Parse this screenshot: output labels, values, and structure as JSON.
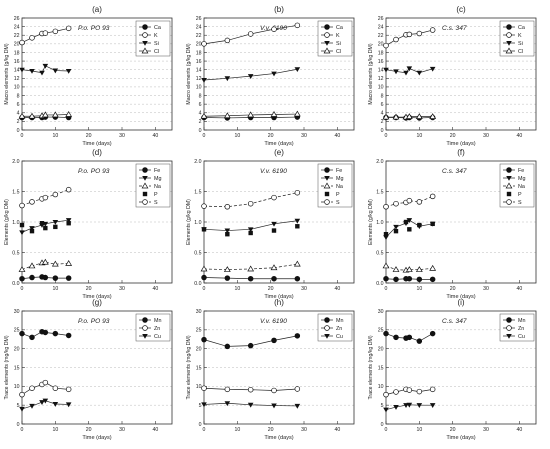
{
  "chart_data": [
    {
      "type": "line",
      "panel_label": "(a)",
      "annotation": "P.o. PO 93",
      "ylabel": "Macro elements (g/kg DM)",
      "xlabel": "Time (days)",
      "xlim": [
        0,
        45
      ],
      "ylim": [
        0,
        26
      ],
      "xticks": [
        0,
        10,
        20,
        30,
        40
      ],
      "yticks": [
        0,
        2,
        4,
        6,
        8,
        10,
        12,
        14,
        16,
        18,
        20,
        22,
        24,
        26
      ],
      "x": [
        0,
        3,
        6,
        7,
        10,
        14
      ],
      "legend_position": "top-right",
      "grid": "dashed horizontal",
      "series": [
        {
          "name": "Ca",
          "marker": "filled-circle",
          "line": "solid",
          "values": [
            2.9,
            2.9,
            2.9,
            3.0,
            3.0,
            2.9
          ]
        },
        {
          "name": "K",
          "marker": "open-circle",
          "line": "solid",
          "values": [
            20.3,
            21.4,
            22.4,
            22.5,
            22.9,
            23.6
          ]
        },
        {
          "name": "Si",
          "marker": "filled-triangle-down",
          "line": "solid",
          "values": [
            14.0,
            13.7,
            13.3,
            14.9,
            13.8,
            13.7
          ]
        },
        {
          "name": "Cl",
          "marker": "open-triangle-up",
          "line": "solid",
          "values": [
            3.2,
            3.2,
            3.3,
            3.5,
            3.5,
            3.6
          ]
        }
      ]
    },
    {
      "type": "line",
      "panel_label": "(b)",
      "annotation": "V.v. 6190",
      "ylabel": "Macro elements (g/kg DM)",
      "xlabel": "Time (days)",
      "xlim": [
        0,
        45
      ],
      "ylim": [
        0,
        26
      ],
      "xticks": [
        0,
        10,
        20,
        30,
        40
      ],
      "yticks": [
        0,
        2,
        4,
        6,
        8,
        10,
        12,
        14,
        16,
        18,
        20,
        22,
        24,
        26
      ],
      "x": [
        0,
        7,
        14,
        21,
        28
      ],
      "legend_position": "top-right",
      "grid": "dashed horizontal",
      "series": [
        {
          "name": "Ca",
          "marker": "filled-circle",
          "line": "solid",
          "values": [
            2.9,
            2.8,
            2.9,
            2.9,
            3.0
          ]
        },
        {
          "name": "K",
          "marker": "open-circle",
          "line": "solid",
          "values": [
            20.0,
            20.8,
            22.3,
            23.4,
            24.3
          ]
        },
        {
          "name": "Si",
          "marker": "filled-triangle-down",
          "line": "solid",
          "values": [
            11.6,
            12.0,
            12.5,
            13.1,
            14.1
          ]
        },
        {
          "name": "Cl",
          "marker": "open-triangle-up",
          "line": "solid",
          "values": [
            3.2,
            3.3,
            3.5,
            3.6,
            3.7
          ]
        }
      ]
    },
    {
      "type": "line",
      "panel_label": "(c)",
      "annotation": "C.s. 347",
      "ylabel": "Macro elements (g/kg DM)",
      "xlabel": "Time (days)",
      "xlim": [
        0,
        45
      ],
      "ylim": [
        0,
        26
      ],
      "xticks": [
        0,
        10,
        20,
        30,
        40
      ],
      "yticks": [
        0,
        2,
        4,
        6,
        8,
        10,
        12,
        14,
        16,
        18,
        20,
        22,
        24,
        26
      ],
      "x": [
        0,
        3,
        6,
        7,
        10,
        14
      ],
      "legend_position": "top-right",
      "grid": "dashed horizontal",
      "series": [
        {
          "name": "Ca",
          "marker": "filled-circle",
          "line": "solid",
          "values": [
            2.9,
            2.9,
            2.8,
            2.9,
            2.8,
            2.9
          ]
        },
        {
          "name": "K",
          "marker": "open-circle",
          "line": "solid",
          "values": [
            19.6,
            21.0,
            22.1,
            22.2,
            22.4,
            23.2
          ]
        },
        {
          "name": "Si",
          "marker": "filled-triangle-down",
          "line": "solid",
          "values": [
            14.0,
            13.6,
            13.3,
            14.3,
            13.3,
            14.2
          ]
        },
        {
          "name": "Cl",
          "marker": "open-triangle-up",
          "line": "solid",
          "values": [
            3.0,
            3.0,
            3.0,
            3.1,
            3.1,
            3.1
          ]
        }
      ]
    },
    {
      "type": "line",
      "panel_label": "(d)",
      "annotation": "P.o. PO 93",
      "ylabel": "Elements (g/kg DM)",
      "xlabel": "Time (days)",
      "xlim": [
        0,
        45
      ],
      "ylim": [
        0.0,
        2.0
      ],
      "xticks": [
        0,
        10,
        20,
        30,
        40
      ],
      "yticks": [
        0.0,
        0.5,
        1.0,
        1.5,
        2.0
      ],
      "x": [
        0,
        3,
        6,
        7,
        10,
        14
      ],
      "legend_position": "top-right",
      "grid": "dashed horizontal",
      "series": [
        {
          "name": "Fe",
          "marker": "filled-circle",
          "line": "solid",
          "values": [
            0.07,
            0.09,
            0.1,
            0.09,
            0.08,
            0.08
          ]
        },
        {
          "name": "Mg",
          "marker": "filled-triangle-down",
          "line": "solid",
          "values": [
            0.83,
            0.9,
            0.95,
            0.97,
            1.0,
            1.03
          ]
        },
        {
          "name": "Na",
          "marker": "open-triangle-up",
          "line": "dashed",
          "values": [
            0.22,
            0.28,
            0.33,
            0.34,
            0.31,
            0.32
          ]
        },
        {
          "name": "P",
          "marker": "filled-square",
          "line": "none",
          "values": [
            0.95,
            0.85,
            0.98,
            0.9,
            0.92,
            0.98
          ]
        },
        {
          "name": "S",
          "marker": "open-circle",
          "line": "dashed",
          "values": [
            1.27,
            1.33,
            1.38,
            1.4,
            1.45,
            1.53
          ]
        }
      ]
    },
    {
      "type": "line",
      "panel_label": "(e)",
      "annotation": "V.v. 6190",
      "ylabel": "Elements (g/kg DM)",
      "xlabel": "Time (days)",
      "xlim": [
        0,
        45
      ],
      "ylim": [
        0.0,
        2.0
      ],
      "xticks": [
        0,
        10,
        20,
        30,
        40
      ],
      "yticks": [
        0.0,
        0.5,
        1.0,
        1.5,
        2.0
      ],
      "x": [
        0,
        7,
        14,
        21,
        28
      ],
      "legend_position": "top-right",
      "grid": "dashed horizontal",
      "series": [
        {
          "name": "Fe",
          "marker": "filled-circle",
          "line": "solid",
          "values": [
            0.09,
            0.08,
            0.07,
            0.07,
            0.07
          ]
        },
        {
          "name": "Mg",
          "marker": "filled-triangle-down",
          "line": "solid",
          "values": [
            0.88,
            0.86,
            0.88,
            0.97,
            1.02
          ]
        },
        {
          "name": "Na",
          "marker": "open-triangle-up",
          "line": "dashed",
          "values": [
            0.23,
            0.22,
            0.23,
            0.25,
            0.31
          ]
        },
        {
          "name": "P",
          "marker": "filled-square",
          "line": "none",
          "values": [
            0.88,
            0.8,
            0.82,
            0.86,
            0.93
          ]
        },
        {
          "name": "S",
          "marker": "open-circle",
          "line": "dashed",
          "values": [
            1.26,
            1.25,
            1.3,
            1.4,
            1.48
          ]
        }
      ]
    },
    {
      "type": "line",
      "panel_label": "(f)",
      "annotation": "C.s. 347",
      "ylabel": "Elements (g/kg DM)",
      "xlabel": "Time (days)",
      "xlim": [
        0,
        45
      ],
      "ylim": [
        0.0,
        2.0
      ],
      "xticks": [
        0,
        10,
        20,
        30,
        40
      ],
      "yticks": [
        0.0,
        0.5,
        1.0,
        1.5,
        2.0
      ],
      "x": [
        0,
        3,
        6,
        7,
        10,
        14
      ],
      "legend_position": "top-right",
      "grid": "dashed horizontal",
      "series": [
        {
          "name": "Fe",
          "marker": "filled-circle",
          "line": "solid",
          "values": [
            0.07,
            0.06,
            0.07,
            0.07,
            0.06,
            0.06
          ]
        },
        {
          "name": "Mg",
          "marker": "filled-triangle-down",
          "line": "solid",
          "values": [
            0.75,
            0.92,
            0.98,
            1.03,
            0.93,
            0.97
          ]
        },
        {
          "name": "Na",
          "marker": "open-triangle-up",
          "line": "dashed",
          "values": [
            0.28,
            0.22,
            0.21,
            0.22,
            0.22,
            0.24
          ]
        },
        {
          "name": "P",
          "marker": "filled-square",
          "line": "none",
          "values": [
            0.8,
            0.85,
            1.0,
            0.88,
            0.95,
            0.97
          ]
        },
        {
          "name": "S",
          "marker": "open-circle",
          "line": "dashed",
          "values": [
            1.25,
            1.3,
            1.32,
            1.35,
            1.33,
            1.42
          ]
        }
      ]
    },
    {
      "type": "line",
      "panel_label": "(g)",
      "annotation": "P.o. PO 93",
      "ylabel": "Trace elements (mg/kg DM)",
      "xlabel": "Time (days)",
      "xlim": [
        0,
        45
      ],
      "ylim": [
        0,
        30
      ],
      "xticks": [
        0,
        10,
        20,
        30,
        40
      ],
      "yticks": [
        0,
        5,
        10,
        15,
        20,
        25,
        30
      ],
      "x": [
        0,
        3,
        6,
        7,
        10,
        14
      ],
      "legend_position": "top-right",
      "grid": "dashed horizontal",
      "series": [
        {
          "name": "Mn",
          "marker": "filled-circle",
          "line": "solid",
          "values": [
            24.0,
            23.0,
            24.5,
            24.3,
            24.0,
            23.5
          ]
        },
        {
          "name": "Zn",
          "marker": "open-circle",
          "line": "solid",
          "values": [
            7.8,
            9.5,
            10.5,
            11.0,
            9.5,
            9.2
          ]
        },
        {
          "name": "Cu",
          "marker": "filled-triangle-down",
          "line": "solid",
          "values": [
            4.0,
            4.8,
            5.8,
            6.2,
            5.3,
            5.2
          ]
        }
      ]
    },
    {
      "type": "line",
      "panel_label": "(h)",
      "annotation": "V.v. 6190",
      "ylabel": "Trace elements (mg/kg DM)",
      "xlabel": "Time (days)",
      "xlim": [
        0,
        45
      ],
      "ylim": [
        0,
        30
      ],
      "xticks": [
        0,
        10,
        20,
        30,
        40
      ],
      "yticks": [
        0,
        5,
        10,
        15,
        20,
        25,
        30
      ],
      "x": [
        0,
        7,
        14,
        21,
        28
      ],
      "legend_position": "top-right",
      "grid": "dashed horizontal",
      "series": [
        {
          "name": "Mn",
          "marker": "filled-circle",
          "line": "solid",
          "values": [
            22.4,
            20.6,
            20.8,
            22.2,
            23.4
          ]
        },
        {
          "name": "Zn",
          "marker": "open-circle",
          "line": "solid",
          "values": [
            9.5,
            9.2,
            9.1,
            8.9,
            9.3
          ]
        },
        {
          "name": "Cu",
          "marker": "filled-triangle-down",
          "line": "solid",
          "values": [
            5.2,
            5.5,
            5.1,
            4.9,
            4.8
          ]
        }
      ]
    },
    {
      "type": "line",
      "panel_label": "(i)",
      "annotation": "C.s. 347",
      "ylabel": "Trace elements (mg/kg DM)",
      "xlabel": "Time (days)",
      "xlim": [
        0,
        45
      ],
      "ylim": [
        0,
        30
      ],
      "xticks": [
        0,
        10,
        20,
        30,
        40
      ],
      "yticks": [
        0,
        5,
        10,
        15,
        20,
        25,
        30
      ],
      "x": [
        0,
        3,
        6,
        7,
        10,
        14
      ],
      "legend_position": "top-right",
      "grid": "dashed horizontal",
      "series": [
        {
          "name": "Mn",
          "marker": "filled-circle",
          "line": "solid",
          "values": [
            24.0,
            23.0,
            22.8,
            23.0,
            22.0,
            24.0
          ]
        },
        {
          "name": "Zn",
          "marker": "open-circle",
          "line": "solid",
          "values": [
            7.8,
            8.5,
            9.2,
            9.0,
            8.6,
            9.2
          ]
        },
        {
          "name": "Cu",
          "marker": "filled-triangle-down",
          "line": "solid",
          "values": [
            3.8,
            4.5,
            5.0,
            5.1,
            5.0,
            5.0
          ]
        }
      ]
    }
  ]
}
